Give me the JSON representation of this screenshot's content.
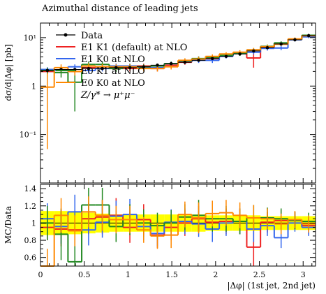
{
  "chart_data": [
    {
      "type": "line",
      "title": "Azimuthal distance of leading jets",
      "ylabel": "dσ/d|Δφ| [pb]",
      "xlabel": "",
      "yscale": "log",
      "xlim": [
        0,
        3.1416
      ],
      "ylim": [
        0.01,
        20
      ],
      "xticks": [
        "0",
        "0.5",
        "1",
        "1.5",
        "2",
        "2.5",
        "3"
      ],
      "yticks": [
        "10⁻¹",
        "1",
        "10¹"
      ],
      "x_edges": [
        0,
        0.157,
        0.314,
        0.471,
        0.628,
        0.785,
        0.942,
        1.1,
        1.257,
        1.414,
        1.571,
        1.728,
        1.885,
        2.042,
        2.199,
        2.356,
        2.513,
        2.67,
        2.827,
        2.985,
        3.1416
      ],
      "legend_position": "top-left",
      "annotation": "Z/γ* → μ⁺μ⁻",
      "series": [
        {
          "name": "Data",
          "style": "markers",
          "color": "#000000",
          "values": [
            2.1,
            2.2,
            2.2,
            2.3,
            2.3,
            2.4,
            2.4,
            2.5,
            2.7,
            2.9,
            3.1,
            3.4,
            3.7,
            4.1,
            4.6,
            5.3,
            6.2,
            7.4,
            9.0,
            11.0
          ],
          "errors": [
            0.15,
            0.15,
            0.15,
            0.15,
            0.15,
            0.15,
            0.15,
            0.15,
            0.15,
            0.15,
            0.15,
            0.15,
            0.15,
            0.15,
            0.15,
            0.15,
            0.15,
            0.15,
            0.15,
            0.15
          ]
        },
        {
          "name": "E1 K1 (default) at NLO",
          "color": "#ee2222",
          "values": [
            2.0,
            2.1,
            2.0,
            2.4,
            2.5,
            2.6,
            2.3,
            2.6,
            2.3,
            2.7,
            3.1,
            3.6,
            3.7,
            4.2,
            4.7,
            3.8,
            6.3,
            7.6,
            9.2,
            10.6
          ],
          "errors": [
            0.2,
            0.25,
            0.25,
            0.25,
            0.3,
            0.3,
            0.3,
            0.3,
            0.3,
            0.3,
            0.35,
            0.4,
            0.4,
            0.4,
            0.5,
            1.4,
            0.5,
            0.5,
            0.6,
            0.7
          ]
        },
        {
          "name": "E1 K0 at NLO",
          "color": "#3366ee",
          "values": [
            2.2,
            2.1,
            2.5,
            2.1,
            2.3,
            2.6,
            2.6,
            2.4,
            2.4,
            2.9,
            3.2,
            3.4,
            3.4,
            4.1,
            4.7,
            5.0,
            6.0,
            6.1,
            9.0,
            10.4
          ],
          "errors": [
            0.25,
            0.25,
            0.3,
            0.3,
            0.3,
            0.3,
            0.3,
            0.3,
            0.3,
            0.3,
            0.35,
            0.4,
            0.4,
            0.4,
            0.5,
            0.5,
            0.6,
            0.6,
            0.7,
            0.7
          ]
        },
        {
          "name": "E0 K1 at NLO",
          "color": "#228822",
          "values": [
            2.1,
            1.9,
            1.2,
            2.8,
            2.8,
            2.3,
            2.5,
            2.5,
            2.6,
            2.9,
            3.3,
            3.7,
            3.9,
            4.3,
            4.7,
            5.6,
            6.6,
            7.8,
            9.3,
            11.2
          ],
          "errors": [
            0.3,
            0.4,
            0.9,
            0.4,
            0.4,
            0.35,
            0.35,
            0.3,
            0.3,
            0.3,
            0.35,
            0.4,
            0.4,
            0.4,
            0.5,
            0.5,
            0.6,
            0.6,
            0.7,
            0.8
          ]
        },
        {
          "name": "E0 K0 at NLO",
          "color": "#ff8800",
          "values": [
            0.95,
            2.4,
            2.0,
            2.6,
            2.5,
            2.5,
            2.5,
            2.3,
            2.3,
            2.5,
            3.4,
            3.6,
            4.1,
            4.6,
            5.0,
            5.6,
            6.5,
            7.3,
            9.4,
            10.9
          ],
          "errors": [
            0.9,
            0.4,
            0.35,
            0.35,
            0.35,
            0.3,
            0.3,
            0.3,
            0.3,
            0.3,
            0.35,
            0.4,
            0.4,
            0.4,
            0.5,
            0.5,
            0.6,
            0.6,
            0.7,
            0.8
          ]
        }
      ]
    },
    {
      "type": "line",
      "ylabel": "MC/Data",
      "xlabel": "|Δφ| (1st jet, 2nd jet)",
      "xlim": [
        0,
        3.1416
      ],
      "ylim": [
        0.5,
        1.45
      ],
      "xticks": [
        "0",
        "0.5",
        "1",
        "1.5",
        "2",
        "2.5",
        "3"
      ],
      "yticks": [
        "0.6",
        "0.8",
        "1",
        "1.2",
        "1.4"
      ],
      "band": {
        "color": "#ffff00",
        "lower": [
          0.86,
          0.86,
          0.87,
          0.88,
          0.89,
          0.9,
          0.9,
          0.9,
          0.9,
          0.9,
          0.9,
          0.9,
          0.91,
          0.91,
          0.91,
          0.91,
          0.92,
          0.92,
          0.92,
          0.92
        ],
        "upper": [
          1.14,
          1.14,
          1.13,
          1.12,
          1.11,
          1.1,
          1.1,
          1.1,
          1.1,
          1.1,
          1.1,
          1.1,
          1.09,
          1.09,
          1.09,
          1.09,
          1.08,
          1.08,
          1.08,
          1.08
        ]
      },
      "series": [
        {
          "name": "E1 K1 (default) at NLO",
          "color": "#ee2222",
          "values": [
            0.95,
            0.93,
            0.92,
            1.05,
            1.07,
            1.09,
            0.95,
            1.04,
            0.86,
            0.95,
            1.0,
            1.05,
            1.01,
            1.02,
            1.02,
            0.72,
            1.01,
            1.03,
            1.03,
            0.97
          ],
          "errors": [
            0.15,
            0.2,
            0.2,
            0.18,
            0.2,
            0.2,
            0.18,
            0.18,
            0.15,
            0.15,
            0.15,
            0.15,
            0.15,
            0.15,
            0.15,
            0.28,
            0.12,
            0.12,
            0.1,
            0.1
          ]
        },
        {
          "name": "E1 K0 at NLO",
          "color": "#3366ee",
          "values": [
            1.05,
            0.96,
            1.13,
            0.92,
            1.01,
            1.08,
            1.1,
            0.96,
            0.88,
            1.01,
            1.02,
            0.99,
            0.93,
            1.0,
            1.02,
            0.93,
            0.97,
            0.83,
            1.0,
            0.95
          ],
          "errors": [
            0.18,
            0.2,
            0.2,
            0.18,
            0.18,
            0.18,
            0.18,
            0.16,
            0.15,
            0.15,
            0.15,
            0.15,
            0.15,
            0.15,
            0.15,
            0.15,
            0.12,
            0.12,
            0.1,
            0.1
          ]
        },
        {
          "name": "E0 K1 at NLO",
          "color": "#228822",
          "values": [
            1.0,
            0.87,
            0.55,
            1.21,
            1.21,
            0.96,
            1.04,
            1.0,
            0.97,
            1.0,
            1.07,
            1.09,
            1.05,
            1.05,
            1.02,
            1.06,
            1.06,
            1.05,
            1.03,
            1.02
          ],
          "errors": [
            0.2,
            0.3,
            0.45,
            0.2,
            0.2,
            0.18,
            0.18,
            0.16,
            0.15,
            0.15,
            0.15,
            0.18,
            0.15,
            0.15,
            0.15,
            0.15,
            0.12,
            0.12,
            0.1,
            0.1
          ]
        },
        {
          "name": "E0 K0 at NLO",
          "color": "#ff8800",
          "values": [
            0.45,
            1.09,
            0.91,
            1.13,
            1.09,
            1.04,
            1.04,
            0.92,
            0.85,
            0.86,
            1.1,
            1.06,
            1.11,
            1.12,
            1.09,
            1.06,
            1.05,
            0.99,
            1.04,
            0.99
          ],
          "errors": [
            0.25,
            0.2,
            0.18,
            0.18,
            0.18,
            0.16,
            0.16,
            0.15,
            0.15,
            0.15,
            0.15,
            0.18,
            0.15,
            0.15,
            0.15,
            0.15,
            0.12,
            0.12,
            0.1,
            0.1
          ]
        }
      ]
    }
  ]
}
